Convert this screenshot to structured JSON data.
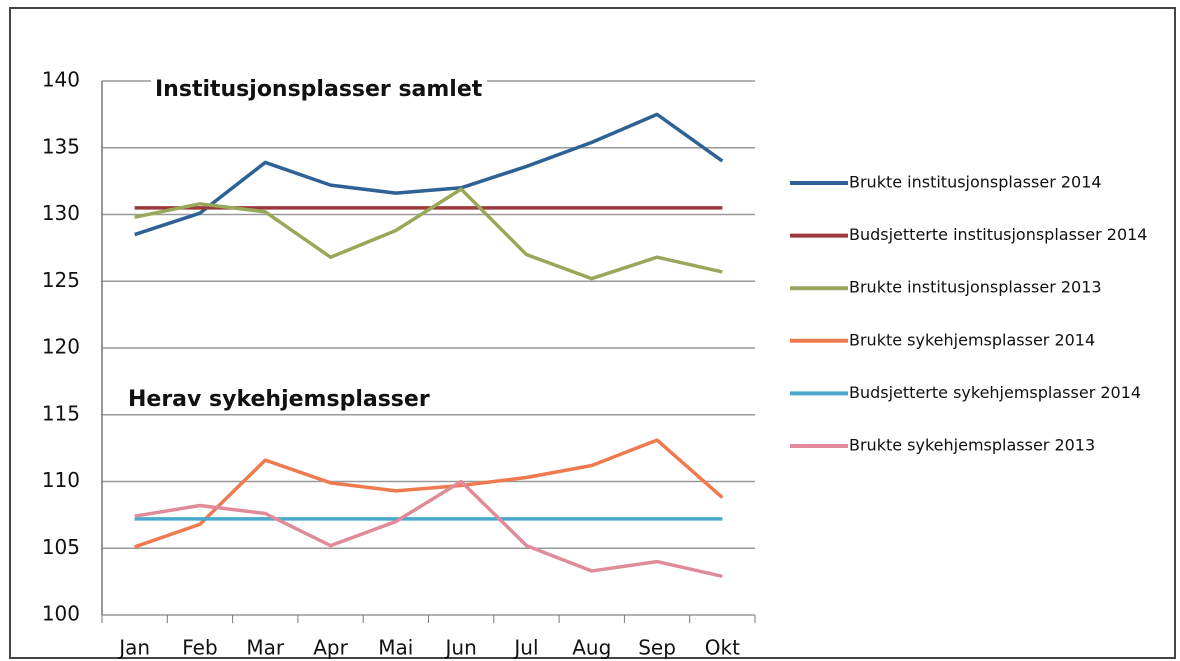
{
  "chart_data": {
    "type": "line",
    "annotations": [
      "Institusjonsplasser samlet",
      "Herav sykehjemsplasser"
    ],
    "categories": [
      "Jan",
      "Feb",
      "Mar",
      "Apr",
      "Mai",
      "Jun",
      "Jul",
      "Aug",
      "Sep",
      "Okt"
    ],
    "ylim": [
      100,
      140
    ],
    "yticks": [
      100,
      105,
      110,
      115,
      120,
      125,
      130,
      135,
      140
    ],
    "grid": true,
    "legend": "right",
    "series": [
      {
        "name": "Brukte institusjonsplasser 2014",
        "color": "#2e6294",
        "values": [
          128.5,
          130.1,
          133.9,
          132.2,
          131.6,
          132.0,
          133.6,
          135.4,
          137.5,
          134.0
        ]
      },
      {
        "name": "Budsjetterte institusjonsplasser 2014",
        "color": "#9b3a3c",
        "values": [
          130.5,
          130.5,
          130.5,
          130.5,
          130.5,
          130.5,
          130.5,
          130.5,
          130.5,
          130.5
        ]
      },
      {
        "name": "Brukte institusjonsplasser 2013",
        "color": "#98a85a",
        "values": [
          129.8,
          130.8,
          130.2,
          126.8,
          128.8,
          131.9,
          127.0,
          125.2,
          126.8,
          125.7
        ]
      },
      {
        "name": "Brukte sykehjemsplasser 2014",
        "color": "#f07a50",
        "values": [
          105.1,
          106.8,
          111.6,
          109.9,
          109.3,
          109.7,
          110.3,
          111.2,
          113.1,
          108.8
        ]
      },
      {
        "name": "Budsjetterte sykehjemsplasser 2014",
        "color": "#4aa8cc",
        "values": [
          107.2,
          107.2,
          107.2,
          107.2,
          107.2,
          107.2,
          107.2,
          107.2,
          107.2,
          107.2
        ]
      },
      {
        "name": "Brukte sykehjemsplasser 2013",
        "color": "#e08a9a",
        "values": [
          107.4,
          108.2,
          107.6,
          105.2,
          107.0,
          110.0,
          105.2,
          103.3,
          104.0,
          102.9
        ]
      }
    ]
  }
}
